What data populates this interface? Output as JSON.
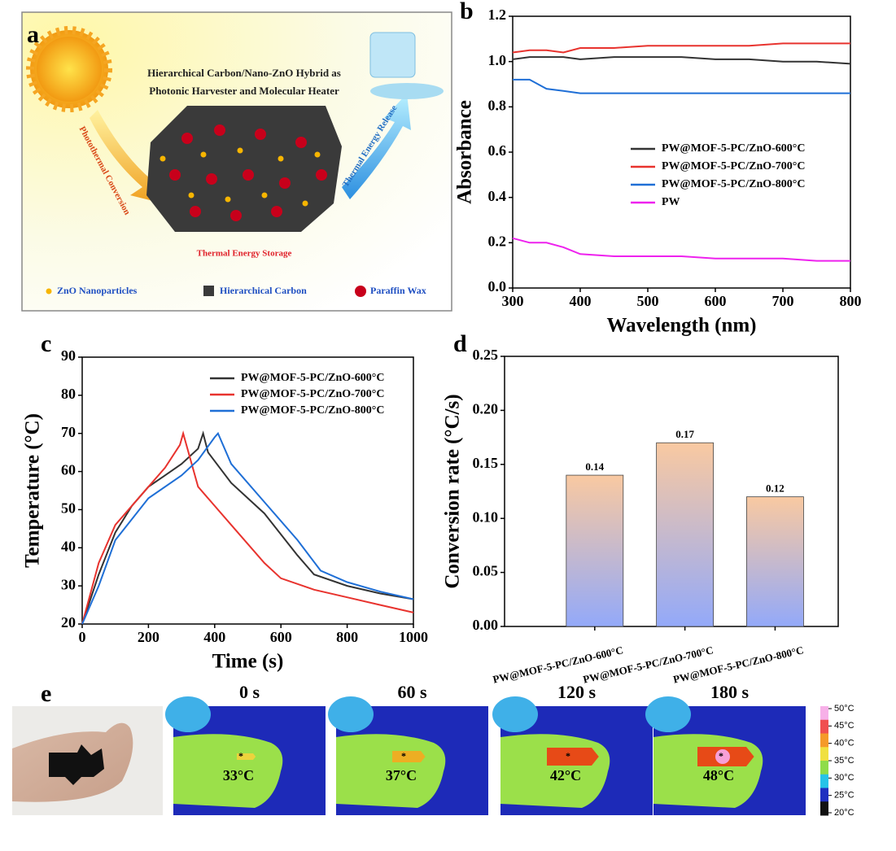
{
  "panels": [
    "a",
    "b",
    "c",
    "d",
    "e"
  ],
  "diagram": {
    "title": [
      "Hierarchical Carbon/Nano-ZnO Hybrid as",
      "Photonic Harvester and Molecular Heater"
    ],
    "left_arrow": "Photothermal Conversion",
    "right_arrow": "Thermal Energy Release",
    "center": "Thermal Energy Storage",
    "legend": [
      "ZnO Nanoparticles",
      "Hierarchical Carbon",
      "Paraffin Wax"
    ]
  },
  "chart_data": [
    {
      "type": "line",
      "xlabel": "Wavelength (nm)",
      "ylabel": "Absorbance",
      "x": [
        300,
        325,
        350,
        375,
        400,
        450,
        500,
        550,
        600,
        650,
        700,
        750,
        800
      ],
      "xlim": [
        300,
        800
      ],
      "xticks": [
        300,
        400,
        500,
        600,
        700,
        800
      ],
      "ylim": [
        0,
        1.2
      ],
      "yticks": [
        {
          "value": 0,
          "label": "0.0"
        },
        0.2,
        0.4,
        0.6,
        0.8,
        {
          "value": 1,
          "label": "1.0"
        },
        1.2
      ],
      "series": [
        {
          "name": "PW@MOF-5-PC/ZnO-600°C",
          "color": "#333333",
          "values": [
            1.01,
            1.02,
            1.02,
            1.02,
            1.01,
            1.02,
            1.02,
            1.02,
            1.01,
            1.01,
            1.0,
            1.0,
            0.99
          ]
        },
        {
          "name": "PW@MOF-5-PC/ZnO-700°C",
          "color": "#e8332e",
          "values": [
            1.04,
            1.05,
            1.05,
            1.04,
            1.06,
            1.06,
            1.07,
            1.07,
            1.07,
            1.07,
            1.08,
            1.08,
            1.08
          ]
        },
        {
          "name": "PW@MOF-5-PC/ZnO-800°C",
          "color": "#1f6fd6",
          "values": [
            0.92,
            0.92,
            0.88,
            0.87,
            0.86,
            0.86,
            0.86,
            0.86,
            0.86,
            0.86,
            0.86,
            0.86,
            0.86
          ]
        },
        {
          "name": "PW",
          "color": "#ee22ee",
          "values": [
            0.22,
            0.2,
            0.2,
            0.18,
            0.15,
            0.14,
            0.14,
            0.14,
            0.13,
            0.13,
            0.13,
            0.12,
            0.12
          ]
        }
      ]
    },
    {
      "type": "line",
      "xlabel": "Time (s)",
      "ylabel": "Temperature (°C)",
      "xlim": [
        0,
        1000
      ],
      "xticks": [
        0,
        200,
        400,
        600,
        800,
        1000
      ],
      "ylim": [
        20,
        90
      ],
      "yticks": [
        20,
        30,
        40,
        50,
        60,
        70,
        80,
        90
      ],
      "series": [
        {
          "name": "PW@MOF-5-PC/ZnO-600°C",
          "color": "#333333",
          "x": [
            0,
            50,
            100,
            150,
            200,
            250,
            300,
            350,
            365,
            380,
            450,
            550,
            650,
            700,
            800,
            900,
            1000
          ],
          "values": [
            20,
            33,
            44,
            51,
            56,
            59,
            62,
            66,
            70,
            65,
            57,
            49,
            38,
            33,
            30,
            28,
            26.5
          ]
        },
        {
          "name": "PW@MOF-5-PC/ZnO-700°C",
          "color": "#e8332e",
          "x": [
            0,
            50,
            100,
            200,
            250,
            295,
            305,
            350,
            450,
            550,
            600,
            700,
            800,
            900,
            1000
          ],
          "values": [
            20,
            36,
            46,
            56,
            61,
            67,
            70,
            56,
            46,
            36,
            32,
            29,
            27,
            25,
            23
          ]
        },
        {
          "name": "PW@MOF-5-PC/ZnO-800°C",
          "color": "#1f6fd6",
          "x": [
            0,
            50,
            100,
            200,
            300,
            350,
            400,
            410,
            450,
            550,
            650,
            720,
            800,
            900,
            1000
          ],
          "values": [
            20,
            30,
            42,
            53,
            59,
            63,
            69,
            70,
            62,
            52,
            42,
            34,
            31,
            28.5,
            26.5
          ]
        }
      ]
    },
    {
      "type": "bar",
      "ylabel": "Conversion rate (°C/s)",
      "categories": [
        "PW@MOF-5-PC/ZnO-600°C",
        "PW@MOF-5-PC/ZnO-700°C",
        "PW@MOF-5-PC/ZnO-800°C"
      ],
      "values": [
        0.14,
        0.17,
        0.12
      ],
      "ylim": [
        0,
        0.25
      ],
      "yticks": [
        {
          "value": 0,
          "label": "0.00"
        },
        0.05,
        {
          "value": 0.1,
          "label": "0.10"
        },
        0.15,
        {
          "value": 0.2,
          "label": "0.20"
        },
        0.25
      ],
      "gradient": [
        "#f9c9a1",
        "#93a9f9"
      ]
    }
  ],
  "thermal": {
    "frames": [
      {
        "time": "0 s",
        "temp": "33°C"
      },
      {
        "time": "60 s",
        "temp": "37°C"
      },
      {
        "time": "120 s",
        "temp": "42°C"
      },
      {
        "time": "180 s",
        "temp": "48°C"
      }
    ],
    "scale": [
      "50°C",
      "45°C",
      "40°C",
      "35°C",
      "30°C",
      "25°C",
      "20°C"
    ]
  }
}
